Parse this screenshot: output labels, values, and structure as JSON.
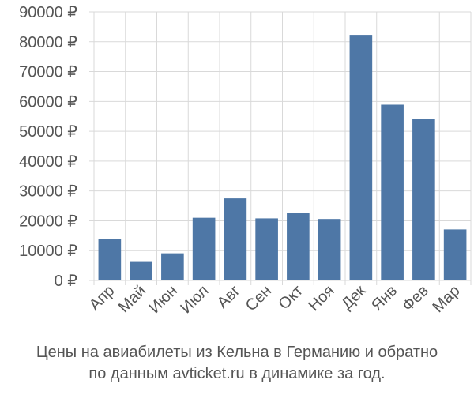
{
  "chart_data": {
    "type": "bar",
    "categories": [
      "Апр",
      "Май",
      "Июн",
      "Июл",
      "Авг",
      "Сен",
      "Окт",
      "Ноя",
      "Дек",
      "Янв",
      "Фев",
      "Мар"
    ],
    "values": [
      13800,
      6200,
      9100,
      21000,
      27500,
      20800,
      22700,
      20600,
      82300,
      58900,
      54100,
      17100
    ],
    "ylim": [
      0,
      90000
    ],
    "yticks": [
      0,
      10000,
      20000,
      30000,
      40000,
      50000,
      60000,
      70000,
      80000,
      90000
    ],
    "ytick_labels": [
      "0 ₽",
      "10000 ₽",
      "20000 ₽",
      "30000 ₽",
      "40000 ₽",
      "50000 ₽",
      "60000 ₽",
      "70000 ₽",
      "80000 ₽",
      "90000 ₽"
    ],
    "grid": true,
    "colors": {
      "bar": "#4e77a6",
      "grid": "#d9d9d9",
      "axis_text": "#555555"
    }
  },
  "caption": {
    "line1": "Цены на авиабилеты из Кельна в Германию и обратно",
    "line2": "по данным avticket.ru в динамике за год."
  }
}
